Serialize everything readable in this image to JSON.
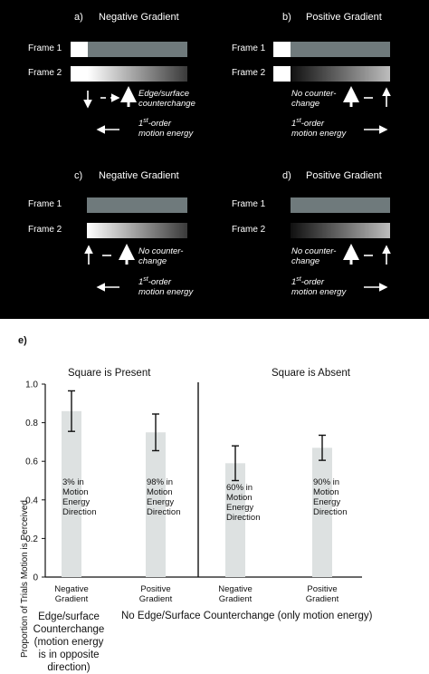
{
  "panels": [
    {
      "letter": "a)",
      "title": "Negative Gradient",
      "frame1": "Frame 1",
      "frame2": "Frame 2",
      "edge_text_1": "Edge/surface",
      "edge_text_2": "counterchange",
      "motion_text_1": "1",
      "motion_text_sup": "st",
      "motion_text_2": "-order",
      "motion_text_3": "motion energy"
    },
    {
      "letter": "b)",
      "title": "Positive Gradient",
      "frame1": "Frame 1",
      "frame2": "Frame 2",
      "edge_text_1": "No counter-",
      "edge_text_2": "change",
      "motion_text_1": "1",
      "motion_text_sup": "st",
      "motion_text_2": "-order",
      "motion_text_3": "motion energy"
    },
    {
      "letter": "c)",
      "title": "Negative Gradient",
      "frame1": "Frame 1",
      "frame2": "Frame 2",
      "edge_text_1": "No counter-",
      "edge_text_2": "change",
      "motion_text_1": "1",
      "motion_text_sup": "st",
      "motion_text_2": "-order",
      "motion_text_3": "motion energy"
    },
    {
      "letter": "d)",
      "title": "Positive Gradient",
      "frame1": "Frame 1",
      "frame2": "Frame 2",
      "edge_text_1": "No counter-",
      "edge_text_2": "change",
      "motion_text_1": "1",
      "motion_text_sup": "st",
      "motion_text_2": "-order",
      "motion_text_3": "motion energy"
    }
  ],
  "panel_e_letter": "e)",
  "chart_data": {
    "type": "bar",
    "ylabel": "Proportion of Trials Motion is Perceived",
    "ylim": [
      0,
      1.0
    ],
    "yticks": [
      "0",
      "0.2",
      "0.4",
      "0.6",
      "0.8",
      "1.0"
    ],
    "group_titles": [
      "Square is Present",
      "Square is Absent"
    ],
    "categories": [
      [
        "Negative",
        "Gradient"
      ],
      [
        "Positive",
        "Gradient"
      ],
      [
        "Negative",
        "Gradient"
      ],
      [
        "Positive",
        "Gradient"
      ]
    ],
    "values": [
      0.86,
      0.75,
      0.59,
      0.67
    ],
    "errors": [
      0.105,
      0.095,
      0.09,
      0.065
    ],
    "bar_color": "#dde1e1",
    "bar_labels": [
      [
        "3%  in",
        "Motion",
        "Energy",
        "Direction"
      ],
      [
        "98%  in",
        "Motion",
        "Energy",
        "Direction"
      ],
      [
        "60%  in",
        "Motion",
        "Energy",
        "Direction"
      ],
      [
        "90%  in",
        "Motion",
        "Energy",
        "Direction"
      ]
    ],
    "bottom_left": [
      "Edge/surface",
      "Counterchange",
      "(motion energy",
      "is in opposite",
      "direction)"
    ],
    "bottom_right": "No Edge/Surface Counterchange (only motion energy)"
  }
}
